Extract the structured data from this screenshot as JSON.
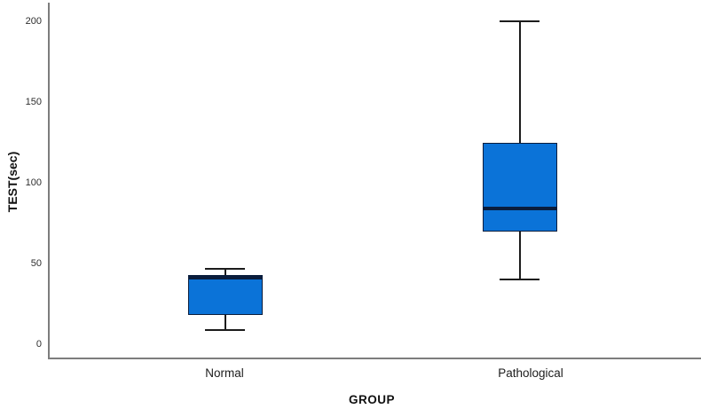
{
  "chart_data": {
    "type": "boxplot",
    "title": "",
    "xlabel": "GROUP",
    "ylabel": "TEST(sec)",
    "categories": [
      "Normal",
      "Pathological"
    ],
    "yticks": [
      0,
      50,
      100,
      150,
      200
    ],
    "ylim": [
      0,
      212
    ],
    "grid": false,
    "legend": "none",
    "boxes": [
      {
        "category": "Normal",
        "whisker_min": 9,
        "q1": 18,
        "median": 41,
        "q3": 43,
        "whisker_max": 47
      },
      {
        "category": "Pathological",
        "whisker_min": 40,
        "q1": 70,
        "median": 84,
        "q3": 125,
        "whisker_max": 200
      }
    ],
    "colors": {
      "box_fill": "#0b73d8",
      "box_border": "#0a1d3d",
      "median": "#0a1d3d",
      "whisker": "#1c1c1c",
      "axis": "#7d7d7d",
      "tick_text": "#2e2e2e",
      "title_text": "#111111",
      "background": "#ffffff"
    }
  }
}
